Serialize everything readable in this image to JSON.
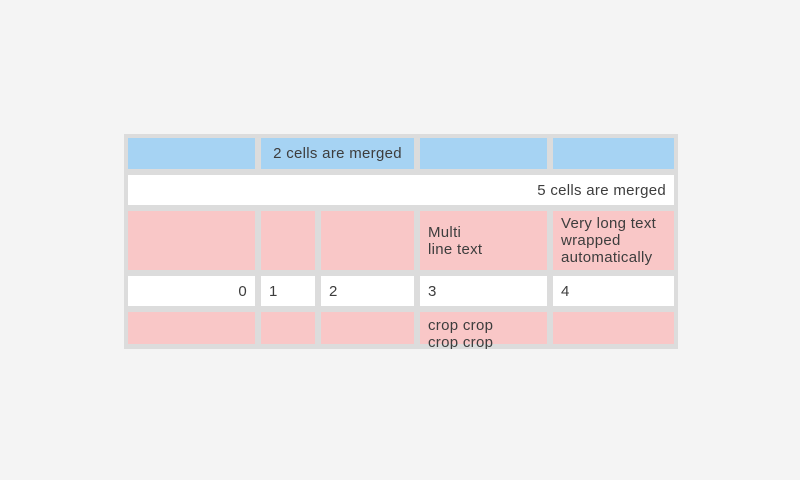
{
  "colors": {
    "bg": "#f4f4f4",
    "grid": "#dcdcdc",
    "blue": "#a6d3f3",
    "pink": "#f9c7c7",
    "white": "#ffffff",
    "text": "#3d3d3d"
  },
  "table": {
    "rows": {
      "row1": {
        "merged2_label": "2 cells are merged"
      },
      "row2": {
        "merged5_label": "5 cells are merged"
      },
      "row3": {
        "multiline": "Multi\nline text",
        "autowrap": "Very long text wrapped automatically"
      },
      "row4": {
        "c1": "0",
        "c2": "1",
        "c3": "2",
        "c4": "3",
        "c5": "4"
      },
      "row5": {
        "crop": "crop crop\ncrop crop"
      }
    }
  }
}
